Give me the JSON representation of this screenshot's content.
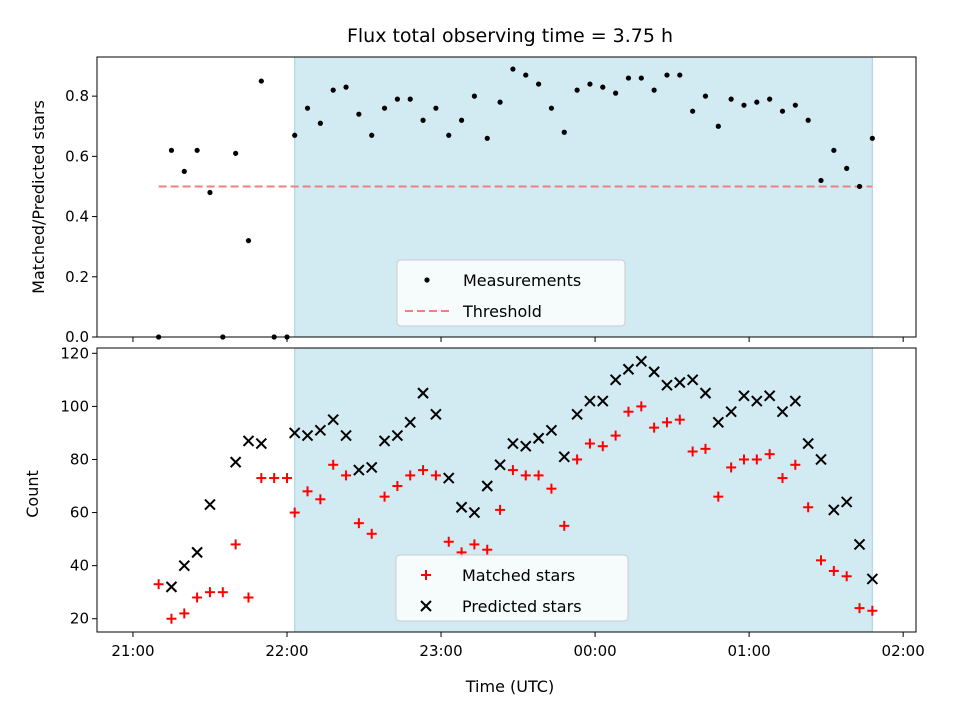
{
  "chart_data": [
    {
      "type": "scatter",
      "title": "Flux total observing time = 3.75 h",
      "ylabel": "Matched/Predicted stars",
      "xlim": [
        "21:00",
        "02:00"
      ],
      "ylim": [
        0,
        0.93
      ],
      "yticks": [
        "0.0",
        "0.2",
        "0.4",
        "0.6",
        "0.8"
      ],
      "shaded_interval": [
        "22:03",
        "25:48"
      ],
      "threshold": {
        "y": 0.5,
        "x": [
          "21:10",
          "25:48"
        ]
      },
      "legend": {
        "placement": "lower-center",
        "entries": [
          "Measurements",
          "Threshold"
        ]
      },
      "colors": {
        "measurements": "#000000",
        "threshold": "#f08080",
        "shade": "#add8e6"
      },
      "series": [
        {
          "name": "Measurements",
          "points": [
            [
              "21:10",
              0.0
            ],
            [
              "21:15",
              0.62
            ],
            [
              "21:20",
              0.55
            ],
            [
              "21:25",
              0.62
            ],
            [
              "21:30",
              0.48
            ],
            [
              "21:35",
              0.0
            ],
            [
              "21:40",
              0.61
            ],
            [
              "21:45",
              0.32
            ],
            [
              "21:50",
              0.85
            ],
            [
              "21:55",
              0.0
            ],
            [
              "22:00",
              0.0
            ],
            [
              "22:03",
              0.67
            ],
            [
              "22:08",
              0.76
            ],
            [
              "22:13",
              0.71
            ],
            [
              "22:18",
              0.82
            ],
            [
              "22:23",
              0.83
            ],
            [
              "22:28",
              0.74
            ],
            [
              "22:33",
              0.67
            ],
            [
              "22:38",
              0.76
            ],
            [
              "22:43",
              0.79
            ],
            [
              "22:48",
              0.79
            ],
            [
              "22:53",
              0.72
            ],
            [
              "22:58",
              0.76
            ],
            [
              "23:03",
              0.67
            ],
            [
              "23:08",
              0.72
            ],
            [
              "23:13",
              0.8
            ],
            [
              "23:18",
              0.66
            ],
            [
              "23:23",
              0.78
            ],
            [
              "23:28",
              0.89
            ],
            [
              "23:33",
              0.87
            ],
            [
              "23:38",
              0.84
            ],
            [
              "23:43",
              0.76
            ],
            [
              "23:48",
              0.68
            ],
            [
              "23:53",
              0.82
            ],
            [
              "23:58",
              0.84
            ],
            [
              "24:03",
              0.83
            ],
            [
              "24:08",
              0.81
            ],
            [
              "24:13",
              0.86
            ],
            [
              "24:18",
              0.86
            ],
            [
              "24:23",
              0.82
            ],
            [
              "24:28",
              0.87
            ],
            [
              "24:33",
              0.87
            ],
            [
              "24:38",
              0.75
            ],
            [
              "24:43",
              0.8
            ],
            [
              "24:48",
              0.7
            ],
            [
              "24:53",
              0.79
            ],
            [
              "24:58",
              0.77
            ],
            [
              "25:03",
              0.78
            ],
            [
              "25:08",
              0.79
            ],
            [
              "25:13",
              0.75
            ],
            [
              "25:18",
              0.77
            ],
            [
              "25:23",
              0.72
            ],
            [
              "25:28",
              0.52
            ],
            [
              "25:33",
              0.62
            ],
            [
              "25:38",
              0.56
            ],
            [
              "25:43",
              0.5
            ],
            [
              "25:48",
              0.66
            ]
          ]
        }
      ]
    },
    {
      "type": "scatter",
      "xlabel": "Time (UTC)",
      "ylabel": "Count",
      "xlim": [
        "21:00",
        "02:00"
      ],
      "ylim": [
        15,
        122
      ],
      "xticks": [
        "21:00",
        "22:00",
        "23:00",
        "00:00",
        "01:00",
        "02:00"
      ],
      "yticks": [
        "20",
        "40",
        "60",
        "80",
        "100",
        "120"
      ],
      "shaded_interval": [
        "22:03",
        "25:48"
      ],
      "legend": {
        "placement": "lower-center",
        "entries": [
          "Matched stars",
          "Predicted stars"
        ]
      },
      "colors": {
        "matched": "#ff0000",
        "predicted": "#000000",
        "shade": "#add8e6"
      },
      "series": [
        {
          "name": "Matched stars",
          "points": [
            [
              "21:10",
              33
            ],
            [
              "21:15",
              20
            ],
            [
              "21:20",
              22
            ],
            [
              "21:25",
              28
            ],
            [
              "21:30",
              30
            ],
            [
              "21:35",
              30
            ],
            [
              "21:40",
              48
            ],
            [
              "21:45",
              28
            ],
            [
              "21:50",
              73
            ],
            [
              "21:55",
              73
            ],
            [
              "22:00",
              73
            ],
            [
              "22:03",
              60
            ],
            [
              "22:08",
              68
            ],
            [
              "22:13",
              65
            ],
            [
              "22:18",
              78
            ],
            [
              "22:23",
              74
            ],
            [
              "22:28",
              56
            ],
            [
              "22:33",
              52
            ],
            [
              "22:38",
              66
            ],
            [
              "22:43",
              70
            ],
            [
              "22:48",
              74
            ],
            [
              "22:53",
              76
            ],
            [
              "22:58",
              74
            ],
            [
              "23:03",
              49
            ],
            [
              "23:08",
              45
            ],
            [
              "23:13",
              48
            ],
            [
              "23:18",
              46
            ],
            [
              "23:23",
              61
            ],
            [
              "23:28",
              76
            ],
            [
              "23:33",
              74
            ],
            [
              "23:38",
              74
            ],
            [
              "23:43",
              69
            ],
            [
              "23:48",
              55
            ],
            [
              "23:53",
              80
            ],
            [
              "23:58",
              86
            ],
            [
              "24:03",
              85
            ],
            [
              "24:08",
              89
            ],
            [
              "24:13",
              98
            ],
            [
              "24:18",
              100
            ],
            [
              "24:23",
              92
            ],
            [
              "24:28",
              94
            ],
            [
              "24:33",
              95
            ],
            [
              "24:38",
              83
            ],
            [
              "24:43",
              84
            ],
            [
              "24:48",
              66
            ],
            [
              "24:53",
              77
            ],
            [
              "24:58",
              80
            ],
            [
              "25:03",
              80
            ],
            [
              "25:08",
              82
            ],
            [
              "25:13",
              73
            ],
            [
              "25:18",
              78
            ],
            [
              "25:23",
              62
            ],
            [
              "25:28",
              42
            ],
            [
              "25:33",
              38
            ],
            [
              "25:38",
              36
            ],
            [
              "25:43",
              24
            ],
            [
              "25:48",
              23
            ]
          ]
        },
        {
          "name": "Predicted stars",
          "points": [
            [
              "21:15",
              32
            ],
            [
              "21:20",
              40
            ],
            [
              "21:25",
              45
            ],
            [
              "21:30",
              63
            ],
            [
              "21:40",
              79
            ],
            [
              "21:45",
              87
            ],
            [
              "21:50",
              86
            ],
            [
              "22:03",
              90
            ],
            [
              "22:08",
              89
            ],
            [
              "22:13",
              91
            ],
            [
              "22:18",
              95
            ],
            [
              "22:23",
              89
            ],
            [
              "22:28",
              76
            ],
            [
              "22:33",
              77
            ],
            [
              "22:38",
              87
            ],
            [
              "22:43",
              89
            ],
            [
              "22:48",
              94
            ],
            [
              "22:53",
              105
            ],
            [
              "22:58",
              97
            ],
            [
              "23:03",
              73
            ],
            [
              "23:08",
              62
            ],
            [
              "23:13",
              60
            ],
            [
              "23:18",
              70
            ],
            [
              "23:23",
              78
            ],
            [
              "23:28",
              86
            ],
            [
              "23:33",
              85
            ],
            [
              "23:38",
              88
            ],
            [
              "23:43",
              91
            ],
            [
              "23:48",
              81
            ],
            [
              "23:53",
              97
            ],
            [
              "23:58",
              102
            ],
            [
              "24:03",
              102
            ],
            [
              "24:08",
              110
            ],
            [
              "24:13",
              114
            ],
            [
              "24:18",
              117
            ],
            [
              "24:23",
              113
            ],
            [
              "24:28",
              108
            ],
            [
              "24:33",
              109
            ],
            [
              "24:38",
              110
            ],
            [
              "24:43",
              105
            ],
            [
              "24:48",
              94
            ],
            [
              "24:53",
              98
            ],
            [
              "24:58",
              104
            ],
            [
              "25:03",
              102
            ],
            [
              "25:08",
              104
            ],
            [
              "25:13",
              98
            ],
            [
              "25:18",
              102
            ],
            [
              "25:23",
              86
            ],
            [
              "25:28",
              80
            ],
            [
              "25:33",
              61
            ],
            [
              "25:38",
              64
            ],
            [
              "25:43",
              48
            ],
            [
              "25:48",
              35
            ]
          ]
        }
      ]
    }
  ]
}
